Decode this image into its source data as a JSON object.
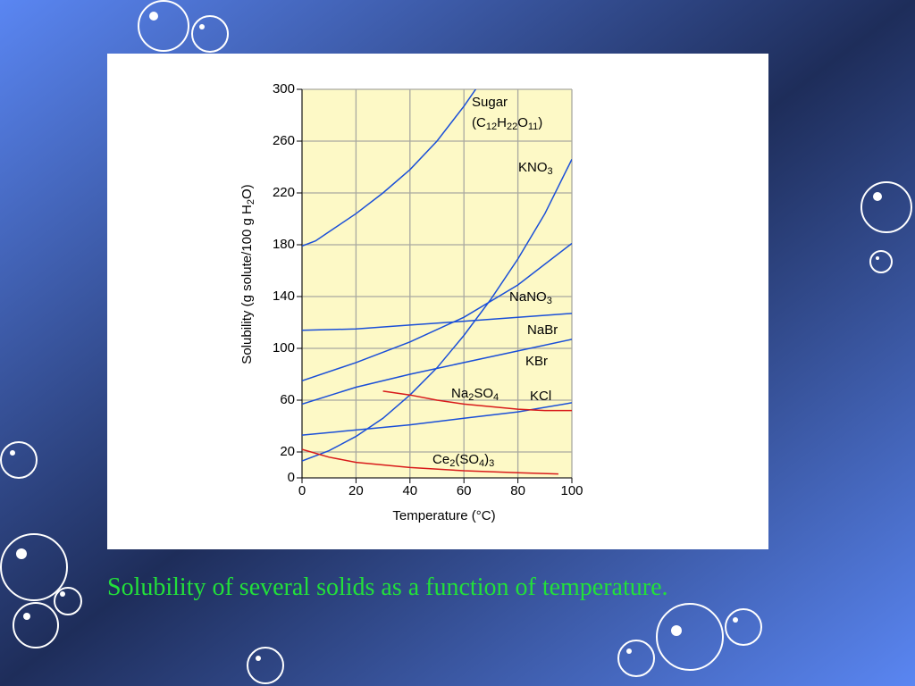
{
  "chart_data": {
    "type": "line",
    "caption": "Solubility of several solids as a function of temperature.",
    "x_label": "Temperature (°C)",
    "y_label": "Solubility (g solute/100 g H2O)",
    "xlim": [
      0,
      100
    ],
    "xticks": [
      0,
      20,
      40,
      60,
      80,
      100
    ],
    "ylim": [
      0,
      300
    ],
    "yticks": [
      0,
      20,
      60,
      100,
      140,
      180,
      220,
      260,
      300
    ],
    "grid": true,
    "series": [
      {
        "name": "Sugar",
        "formula": "(C12H22O11)",
        "color": "#1a4fd8",
        "x": [
          0,
          5,
          10,
          20,
          30,
          40,
          50,
          60,
          65
        ],
        "values": [
          179,
          183,
          190,
          204,
          220,
          238,
          260,
          287,
          302
        ]
      },
      {
        "name": "KNO3",
        "color": "#1a4fd8",
        "x": [
          0,
          10,
          20,
          30,
          40,
          50,
          60,
          70,
          80,
          90,
          100
        ],
        "values": [
          13,
          21,
          32,
          46,
          64,
          85,
          110,
          138,
          169,
          204,
          246
        ]
      },
      {
        "name": "NaNO3",
        "color": "#1a4fd8",
        "x": [
          0,
          20,
          40,
          60,
          80,
          100
        ],
        "values": [
          75,
          89,
          105,
          124,
          149,
          181
        ]
      },
      {
        "name": "NaBr",
        "color": "#1a4fd8",
        "x": [
          0,
          20,
          40,
          60,
          80,
          100
        ],
        "values": [
          114,
          115,
          118,
          121,
          124,
          127
        ]
      },
      {
        "name": "KBr",
        "color": "#1a4fd8",
        "x": [
          0,
          20,
          40,
          60,
          80,
          100
        ],
        "values": [
          57,
          70,
          80,
          89,
          98,
          107
        ]
      },
      {
        "name": "KCl",
        "color": "#1a4fd8",
        "x": [
          0,
          20,
          40,
          60,
          80,
          100
        ],
        "values": [
          33,
          37,
          41,
          46,
          51,
          58
        ]
      },
      {
        "name": "Na2SO4",
        "color": "#d81a1a",
        "x": [
          30,
          40,
          50,
          60,
          70,
          80,
          90,
          100
        ],
        "values": [
          67,
          64,
          60,
          57,
          55,
          53,
          52,
          52
        ]
      },
      {
        "name": "Ce2(SO4)3",
        "color": "#d81a1a",
        "x": [
          0,
          10,
          20,
          30,
          40,
          60,
          80,
          95
        ],
        "values": [
          22,
          16,
          12,
          10,
          8,
          5.5,
          4,
          3
        ]
      }
    ]
  }
}
